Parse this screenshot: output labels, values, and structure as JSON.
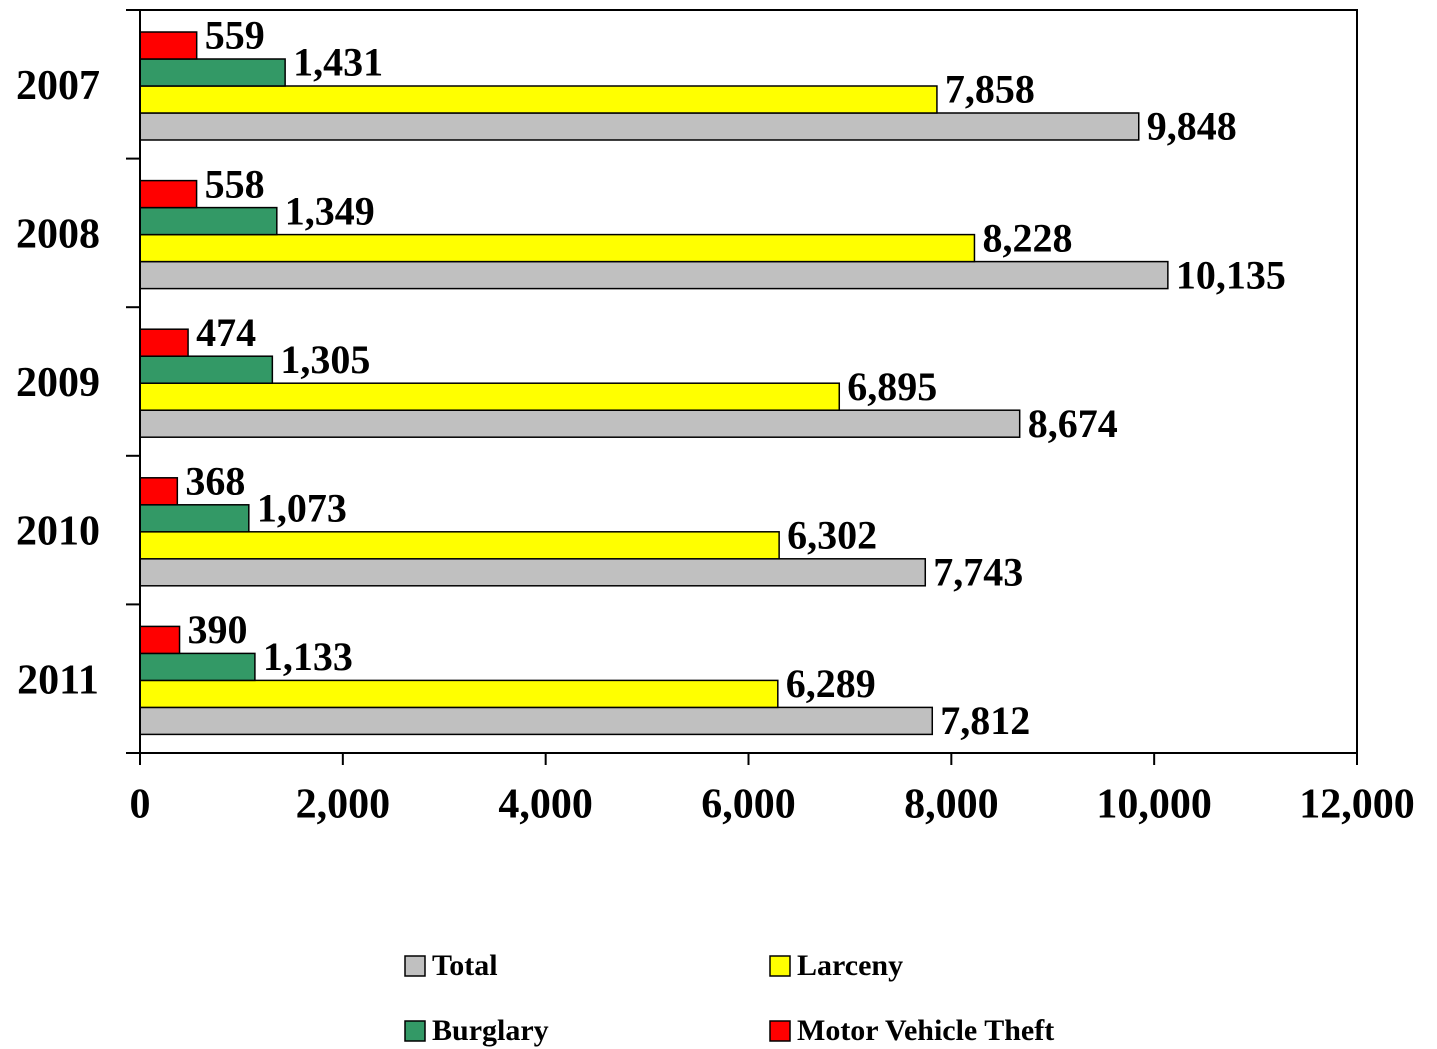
{
  "chart_data": {
    "type": "bar",
    "orientation": "horizontal",
    "categories": [
      "2007",
      "2008",
      "2009",
      "2010",
      "2011"
    ],
    "series": [
      {
        "name": "Total",
        "color": "#c0c0c0",
        "values": [
          9848,
          10135,
          8674,
          7743,
          7812
        ],
        "value_labels": [
          "9,848",
          "10,135",
          "8,674",
          "7,743",
          "7,812"
        ]
      },
      {
        "name": "Larceny",
        "color": "#ffff00",
        "values": [
          7858,
          8228,
          6895,
          6302,
          6289
        ],
        "value_labels": [
          "7,858",
          "8,228",
          "6,895",
          "6,302",
          "6,289"
        ]
      },
      {
        "name": "Burglary",
        "color": "#339966",
        "values": [
          1431,
          1349,
          1305,
          1073,
          1133
        ],
        "value_labels": [
          "1,431",
          "1,349",
          "1,305",
          "1,073",
          "1,133"
        ]
      },
      {
        "name": "Motor Vehicle Theft",
        "color": "#ff0000",
        "values": [
          559,
          558,
          474,
          368,
          390
        ],
        "value_labels": [
          "559",
          "558",
          "474",
          "368",
          "390"
        ]
      }
    ],
    "xlim": [
      0,
      12000
    ],
    "xticks": [
      0,
      {
        "value": 2000,
        "label": "2,000"
      },
      {
        "value": 4000,
        "label": "4,000"
      },
      {
        "value": 6000,
        "label": "6,000"
      },
      {
        "value": 8000,
        "label": "8,000"
      },
      {
        "value": 10000,
        "label": "10,000"
      },
      {
        "value": 12000,
        "label": "12,000"
      }
    ],
    "legend": "bottom"
  }
}
